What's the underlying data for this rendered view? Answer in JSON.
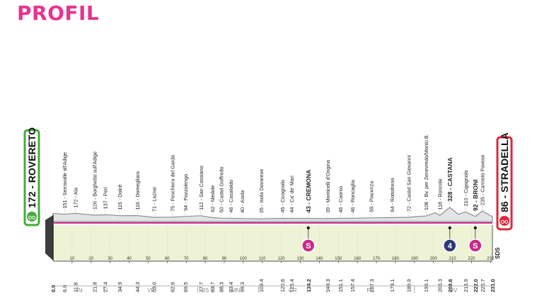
{
  "title": "PROFIL",
  "colors": {
    "title": "#e8338f",
    "elevation_fill": "#e2e4e6",
    "elevation_stroke": "#8e8f92",
    "plain_band": "#eef3d6",
    "route_line": "#c9298b",
    "start_green": "#46ab3b",
    "finish_red": "#e0263c",
    "sprint": "#c9298b",
    "kom4": "#2c3b78",
    "tick": "#333333"
  },
  "start": {
    "altitude": "172",
    "name": "ROVERETO"
  },
  "finish": {
    "altitude": "86",
    "name": "STRADELLA"
  },
  "sds": "SDS",
  "chart_data": {
    "type": "area",
    "title": "PROFIL",
    "xlim": [
      0,
      231
    ],
    "x_ticks": [
      "0",
      "10",
      "20",
      "30",
      "40",
      "50",
      "60",
      "70",
      "80",
      "90",
      "100",
      "110",
      "120",
      "130",
      "140",
      "150",
      "160",
      "170",
      "180",
      "190",
      "200",
      "210",
      "220",
      "230"
    ],
    "places": [
      {
        "km": 6.0,
        "km_label": "6.0",
        "label": "151 - Serravalle all'Adige"
      },
      {
        "km": 11.8,
        "km_label": "11.8",
        "label": "172 - Ala"
      },
      {
        "km": 21.8,
        "km_label": "21.8",
        "label": "126 - Borghetto sull'Adige"
      },
      {
        "km": 27.4,
        "km_label": "27.4",
        "label": "137 - Peri"
      },
      {
        "km": 34.9,
        "km_label": "34.9",
        "label": "115 - Dolcè"
      },
      {
        "km": 44.3,
        "km_label": "44.3",
        "label": "116 - Domegliara"
      },
      {
        "km": 53.0,
        "km_label": "53.0",
        "label": "71 - Lazise"
      },
      {
        "km": 62.6,
        "km_label": "62.6",
        "label": "75 - Peschiera del Garda"
      },
      {
        "km": 69.5,
        "km_label": "69.5",
        "label": "94 - Pozzolengo"
      },
      {
        "km": 77.7,
        "km_label": "77.7",
        "label": "112 - San Cassiano"
      },
      {
        "km": 83.7,
        "km_label": "83.7",
        "label": "62 - Medole"
      },
      {
        "km": 88.3,
        "km_label": "88.3",
        "label": "50 - Castel Goffredo"
      },
      {
        "km": 93.4,
        "km_label": "93.4",
        "label": "46 - Casaloldo"
      },
      {
        "km": 99.3,
        "km_label": "99.3",
        "label": "40 - Asola"
      },
      {
        "km": 109.4,
        "km_label": "109.4",
        "label": "35 - Isola Dovarese"
      },
      {
        "km": 120.6,
        "km_label": "120.6",
        "label": "45 - Cicognolo"
      },
      {
        "km": 125.4,
        "km_label": "125.4",
        "label": "44 - Ca' de' Mari"
      },
      {
        "km": 134.2,
        "km_label": "134.2",
        "label": "43 - CREMONA",
        "bold": true
      },
      {
        "km": 144.3,
        "km_label": "144.3",
        "label": "39 - Monticelli d'Ongina"
      },
      {
        "km": 151.1,
        "km_label": "151.1",
        "label": "46 - Caorso"
      },
      {
        "km": 157.4,
        "km_label": "157.4",
        "label": "46 - Roncaglia"
      },
      {
        "km": 167.3,
        "km_label": "167.3",
        "label": "59 - Piacenza"
      },
      {
        "km": 178.1,
        "km_label": "178.1",
        "label": "64 - Rottofreno"
      },
      {
        "km": 186.9,
        "km_label": "186.9",
        "label": "72 - Castel San Giovanni"
      },
      {
        "km": 196.1,
        "km_label": "196.1",
        "label": "108 - Bv. per Zenevredo/Montù B."
      },
      {
        "km": 203.3,
        "km_label": "203.3",
        "label": "118 - Roncole"
      },
      {
        "km": 208.6,
        "km_label": "208.6",
        "label": "328 - CASTANA",
        "bold": true
      },
      {
        "km": 216.9,
        "km_label": "216.9",
        "label": "210 - Cigognola"
      },
      {
        "km": 222.0,
        "km_label": "222.0",
        "label": "92 - BRONI",
        "bold": true
      },
      {
        "km": 225.7,
        "km_label": "225.7",
        "label": "235 - Canneto Pavese"
      }
    ],
    "start_km_label": "0.0",
    "finish_km_label": "231.0",
    "regions": [
      {
        "label": "TN",
        "from": 0,
        "to": 27
      },
      {
        "label": "VR",
        "from": 27,
        "to": 76
      },
      {
        "label": "BS",
        "from": 76,
        "to": 84
      },
      {
        "label": "MN",
        "from": 84,
        "to": 108
      },
      {
        "label": "CR",
        "from": 108,
        "to": 144
      },
      {
        "label": "PC",
        "from": 144,
        "to": 190
      },
      {
        "label": "PV",
        "from": 190,
        "to": 231
      }
    ],
    "markers": [
      {
        "km": 134.2,
        "type": "sprint",
        "symbol": "S"
      },
      {
        "km": 208.6,
        "type": "kom",
        "symbol": "4"
      },
      {
        "km": 222.0,
        "type": "sprint",
        "symbol": "S"
      }
    ],
    "elevation": [
      {
        "km": 0,
        "alt": 172
      },
      {
        "km": 6,
        "alt": 151
      },
      {
        "km": 11.8,
        "alt": 172
      },
      {
        "km": 21.8,
        "alt": 126
      },
      {
        "km": 27.4,
        "alt": 137
      },
      {
        "km": 34.9,
        "alt": 115
      },
      {
        "km": 44.3,
        "alt": 116
      },
      {
        "km": 53.0,
        "alt": 71
      },
      {
        "km": 62.6,
        "alt": 75
      },
      {
        "km": 69.5,
        "alt": 94
      },
      {
        "km": 77.7,
        "alt": 112
      },
      {
        "km": 83.7,
        "alt": 62
      },
      {
        "km": 88.3,
        "alt": 50
      },
      {
        "km": 93.4,
        "alt": 46
      },
      {
        "km": 99.3,
        "alt": 40
      },
      {
        "km": 109.4,
        "alt": 35
      },
      {
        "km": 120.6,
        "alt": 45
      },
      {
        "km": 125.4,
        "alt": 44
      },
      {
        "km": 134.2,
        "alt": 43
      },
      {
        "km": 144.3,
        "alt": 39
      },
      {
        "km": 151.1,
        "alt": 46
      },
      {
        "km": 157.4,
        "alt": 46
      },
      {
        "km": 167.3,
        "alt": 59
      },
      {
        "km": 178.1,
        "alt": 64
      },
      {
        "km": 186.9,
        "alt": 72
      },
      {
        "km": 196.1,
        "alt": 108
      },
      {
        "km": 201,
        "alt": 190
      },
      {
        "km": 203.3,
        "alt": 118
      },
      {
        "km": 208.6,
        "alt": 328
      },
      {
        "km": 213,
        "alt": 150
      },
      {
        "km": 216.9,
        "alt": 210
      },
      {
        "km": 222.0,
        "alt": 92
      },
      {
        "km": 225.7,
        "alt": 235
      },
      {
        "km": 231,
        "alt": 86
      }
    ],
    "ylim": [
      0,
      1200
    ]
  }
}
